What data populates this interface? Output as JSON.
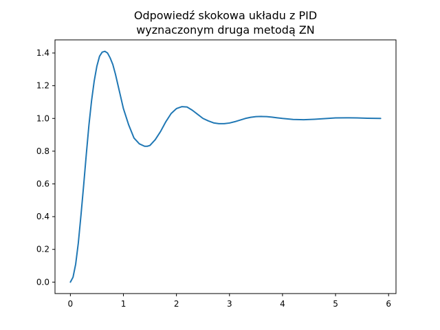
{
  "chart_data": {
    "type": "line",
    "title_lines": [
      "Odpowiedź skokowa układu z PID",
      "wyznaczonym druga metodą ZN"
    ],
    "xlabel": "",
    "ylabel": "",
    "xlim": [
      -0.29,
      6.14
    ],
    "ylim": [
      -0.07,
      1.48
    ],
    "x_ticks": [
      0,
      1,
      2,
      3,
      4,
      5,
      6
    ],
    "y_ticks": [
      0.0,
      0.2,
      0.4,
      0.6,
      0.8,
      1.0,
      1.2,
      1.4
    ],
    "y_tick_labels": [
      "0.0",
      "0.2",
      "0.4",
      "0.6",
      "0.8",
      "1.0",
      "1.2",
      "1.4"
    ],
    "grid": false,
    "series": [
      {
        "color": "#1f77b4",
        "x": [
          0.0,
          0.05,
          0.1,
          0.15,
          0.2,
          0.25,
          0.3,
          0.35,
          0.4,
          0.45,
          0.5,
          0.55,
          0.6,
          0.65,
          0.7,
          0.75,
          0.8,
          0.85,
          0.9,
          0.95,
          1.0,
          1.1,
          1.2,
          1.3,
          1.4,
          1.45,
          1.5,
          1.6,
          1.7,
          1.8,
          1.9,
          2.0,
          2.1,
          2.2,
          2.3,
          2.4,
          2.5,
          2.6,
          2.7,
          2.8,
          2.9,
          3.0,
          3.1,
          3.2,
          3.3,
          3.4,
          3.5,
          3.6,
          3.7,
          3.8,
          3.9,
          4.0,
          4.2,
          4.4,
          4.6,
          4.8,
          5.0,
          5.2,
          5.4,
          5.6,
          5.85
        ],
        "values": [
          0.0,
          0.03,
          0.11,
          0.24,
          0.41,
          0.59,
          0.78,
          0.96,
          1.11,
          1.23,
          1.32,
          1.38,
          1.405,
          1.41,
          1.4,
          1.37,
          1.33,
          1.27,
          1.2,
          1.13,
          1.06,
          0.96,
          0.88,
          0.845,
          0.83,
          0.83,
          0.835,
          0.87,
          0.92,
          0.98,
          1.03,
          1.06,
          1.072,
          1.07,
          1.05,
          1.025,
          1.0,
          0.985,
          0.973,
          0.968,
          0.968,
          0.972,
          0.98,
          0.99,
          1.0,
          1.007,
          1.011,
          1.012,
          1.011,
          1.008,
          1.004,
          1.0,
          0.994,
          0.992,
          0.995,
          0.999,
          1.003,
          1.004,
          1.003,
          1.001,
          1.0
        ]
      }
    ]
  }
}
